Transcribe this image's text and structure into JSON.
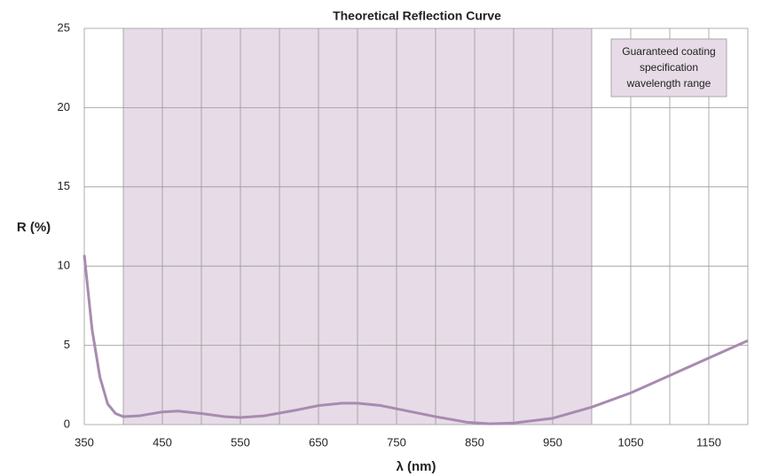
{
  "chart_data": {
    "type": "line",
    "title": "Theoretical Reflection Curve",
    "x_label": "λ (nm)",
    "y_label": "R (%)",
    "shaded_range": [
      400,
      1000
    ],
    "shaded_label": [
      "Guaranteed coating",
      "specification",
      "wavelength range"
    ],
    "shade_color": "#e6dbe6",
    "xlim": [
      350,
      1200
    ],
    "xticks": [
      350,
      450,
      550,
      650,
      750,
      850,
      950,
      1050,
      1150
    ],
    "minor_xticks": [
      400,
      500,
      600,
      700,
      800,
      900,
      1000,
      1100,
      1200
    ],
    "ylim": [
      0,
      25
    ],
    "yticks": [
      0,
      5,
      10,
      15,
      20,
      25
    ],
    "grid": true,
    "series": [
      {
        "color": "#a78bb0",
        "x": [
          350,
          360,
          370,
          380,
          390,
          400,
          420,
          450,
          470,
          500,
          530,
          550,
          580,
          620,
          650,
          680,
          700,
          730,
          760,
          800,
          840,
          870,
          900,
          950,
          1000,
          1050,
          1100,
          1150,
          1200
        ],
        "values": [
          10.7,
          6,
          3,
          1.3,
          0.7,
          0.5,
          0.55,
          0.8,
          0.85,
          0.7,
          0.5,
          0.45,
          0.55,
          0.9,
          1.2,
          1.35,
          1.35,
          1.2,
          0.9,
          0.5,
          0.15,
          0.05,
          0.1,
          0.4,
          1.1,
          2.0,
          3.1,
          4.2,
          5.3
        ]
      }
    ]
  }
}
